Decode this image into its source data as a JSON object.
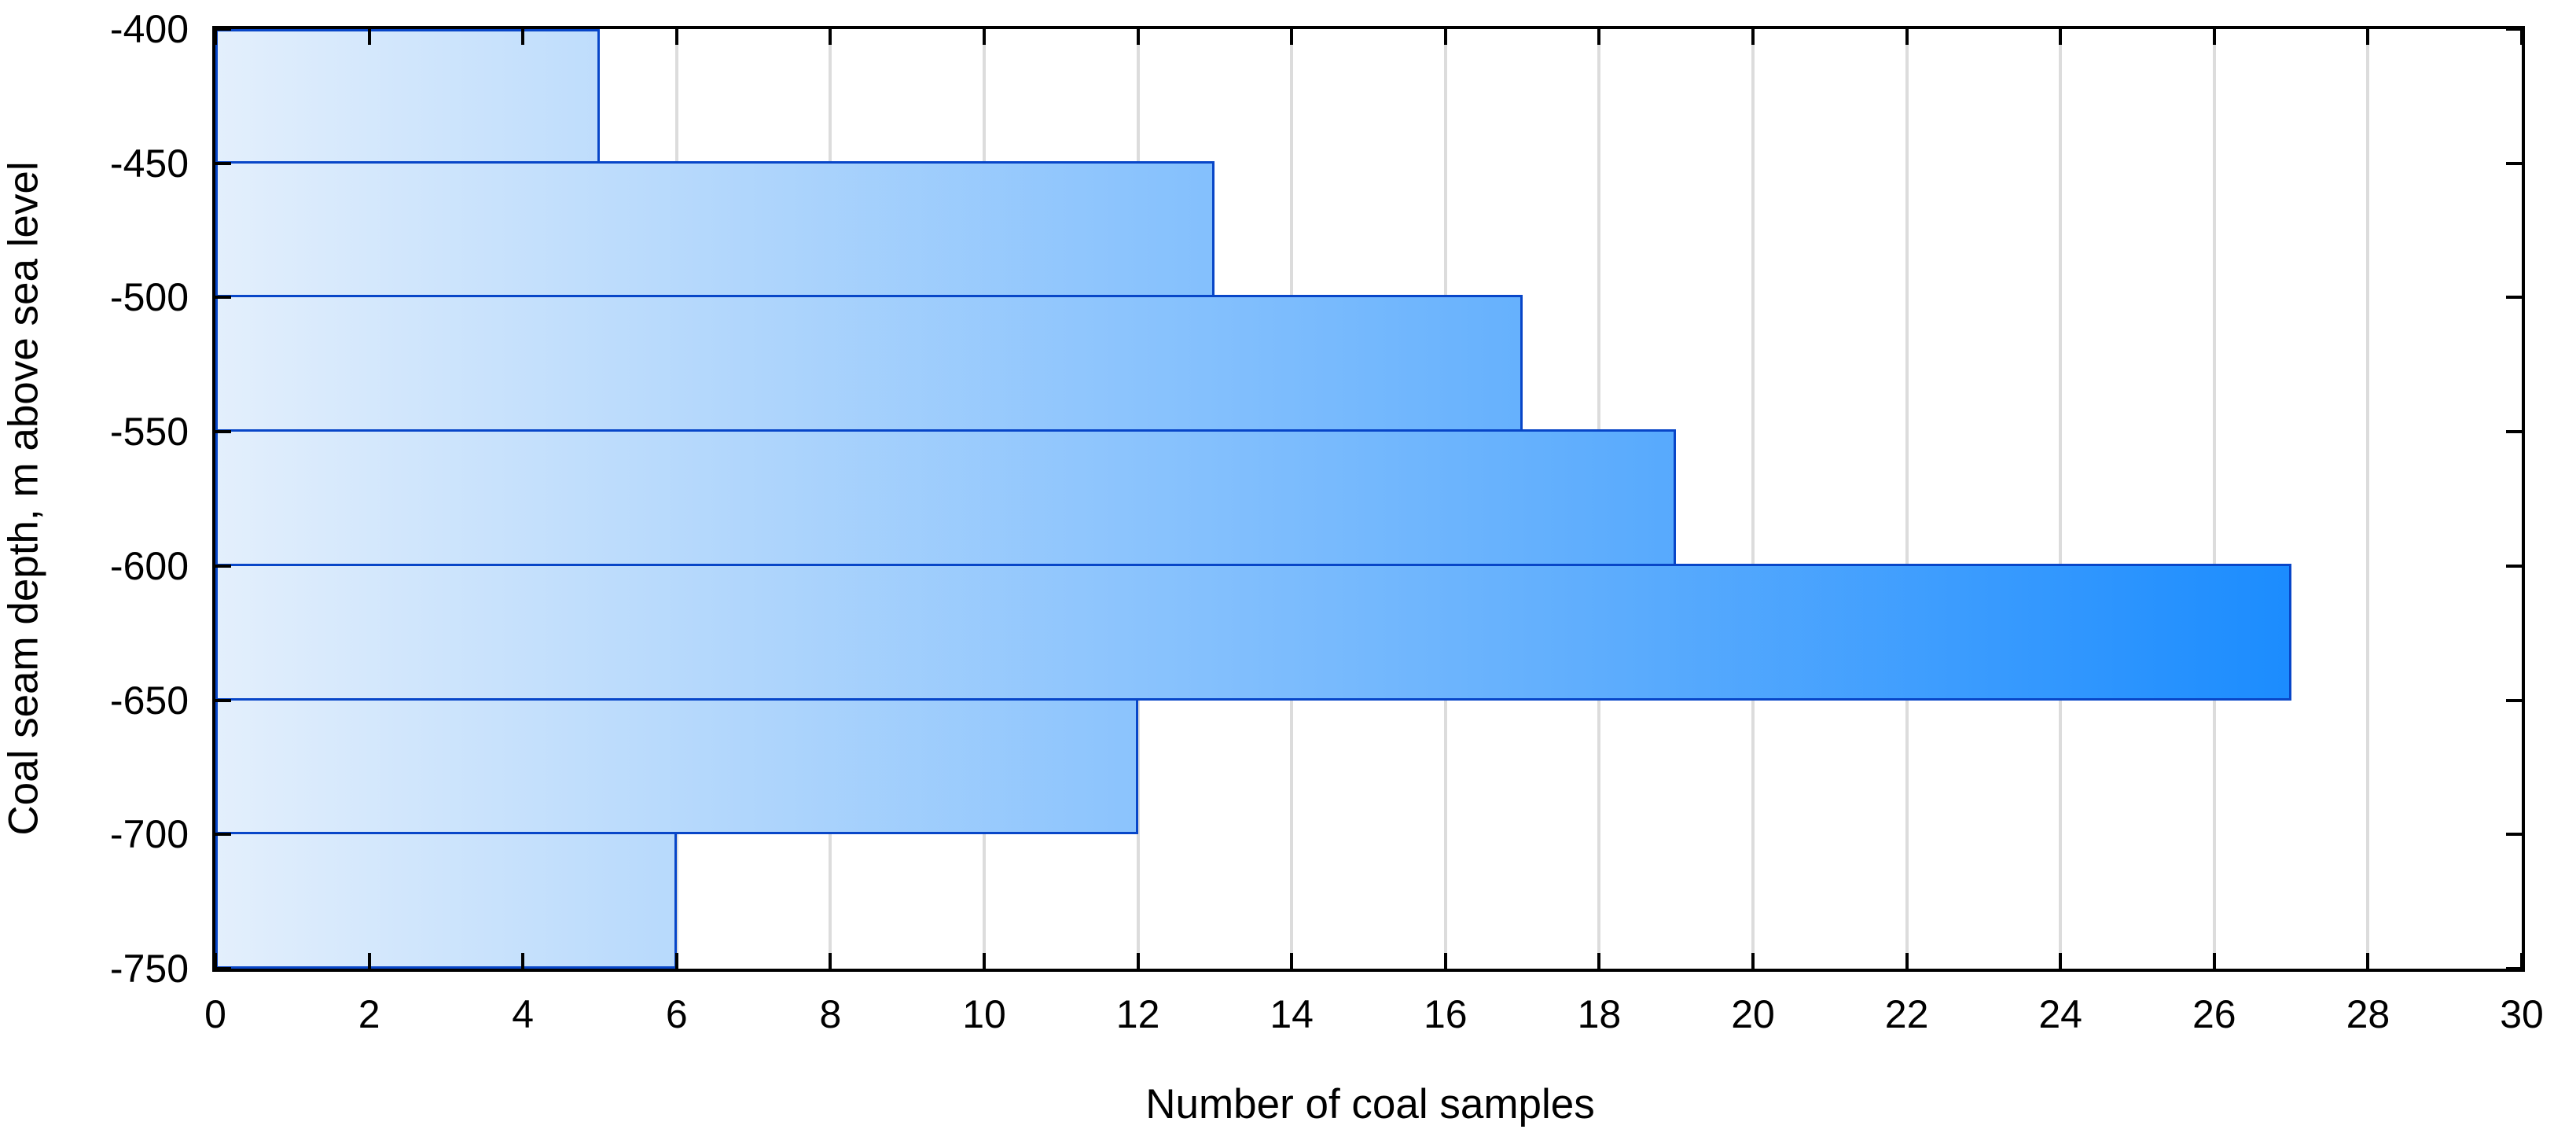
{
  "chart_data": {
    "type": "bar",
    "orientation": "horizontal",
    "title": "",
    "xlabel": "Number of coal samples",
    "ylabel": "Coal seam depth, m above sea level",
    "y_tick_labels": [
      "-400",
      "-450",
      "-500",
      "-550",
      "-600",
      "-650",
      "-700",
      "-750"
    ],
    "bins": [
      {
        "depth_from": -400,
        "depth_to": -450,
        "value": 5
      },
      {
        "depth_from": -450,
        "depth_to": -500,
        "value": 13
      },
      {
        "depth_from": -500,
        "depth_to": -550,
        "value": 17
      },
      {
        "depth_from": -550,
        "depth_to": -600,
        "value": 19
      },
      {
        "depth_from": -600,
        "depth_to": -650,
        "value": 27
      },
      {
        "depth_from": -650,
        "depth_to": -700,
        "value": 12
      },
      {
        "depth_from": -700,
        "depth_to": -750,
        "value": 6
      }
    ],
    "values": [
      5,
      13,
      17,
      19,
      27,
      12,
      6
    ],
    "xlim": [
      0,
      30
    ],
    "x_ticks": [
      0,
      2,
      4,
      6,
      8,
      10,
      12,
      14,
      16,
      18,
      20,
      22,
      24,
      26,
      28,
      30
    ],
    "x_tick_labels": [
      "0",
      "2",
      "4",
      "6",
      "8",
      "10",
      "12",
      "14",
      "16",
      "18",
      "20",
      "22",
      "24",
      "26",
      "28",
      "30"
    ],
    "grid": {
      "vertical": true,
      "horizontal": false,
      "interval": 2
    },
    "legend": null,
    "colors": {
      "bar_gradient_start": "#e3effc",
      "bar_gradient_end": "#0581fe",
      "bar_border": "#0846c8",
      "gridline": "#dcdcdc",
      "frame": "#000000",
      "background": "#ffffff",
      "text": "#000000"
    }
  }
}
